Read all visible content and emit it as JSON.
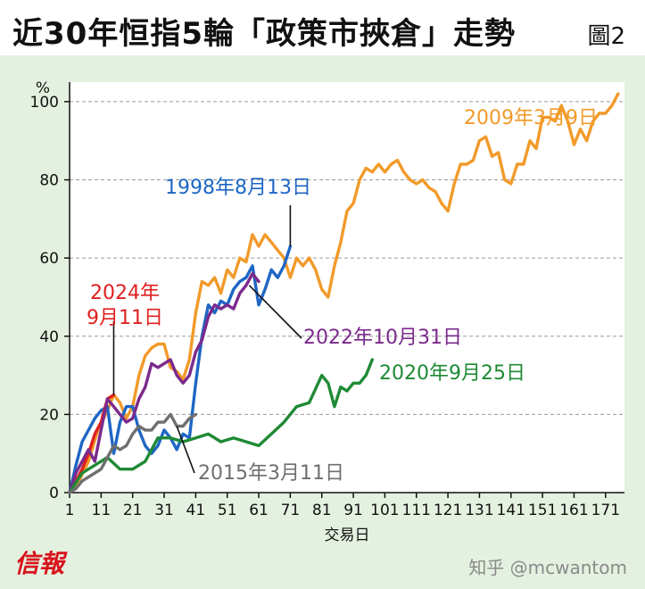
{
  "header": {
    "title": "近30年恒指5輪「政策市挾倉」走勢",
    "figure_label": "圖2"
  },
  "footer": {
    "logo": "信報",
    "watermark": "知乎 @mcwantom"
  },
  "chart_data": {
    "type": "line",
    "title": "近30年恒指5輪「政策市挾倉」走勢",
    "xlabel": "交易日",
    "ylabel": "%",
    "xlim": [
      1,
      177
    ],
    "ylim": [
      0,
      105
    ],
    "xticks": [
      1,
      11,
      21,
      31,
      41,
      51,
      61,
      71,
      81,
      91,
      101,
      111,
      121,
      131,
      141,
      151,
      161,
      171
    ],
    "yticks": [
      0,
      20,
      40,
      60,
      80,
      100
    ],
    "grid": "horizontal dashed",
    "series": [
      {
        "name": "2009年3月9日",
        "color": "#f29a2a",
        "x": [
          1,
          4,
          7,
          10,
          13,
          15,
          17,
          19,
          21,
          23,
          25,
          27,
          29,
          31,
          33,
          35,
          37,
          39,
          41,
          43,
          45,
          47,
          49,
          51,
          53,
          55,
          57,
          59,
          61,
          63,
          65,
          67,
          69,
          71,
          73,
          75,
          77,
          79,
          81,
          83,
          85,
          87,
          89,
          91,
          93,
          95,
          97,
          99,
          101,
          103,
          105,
          107,
          109,
          111,
          113,
          115,
          117,
          119,
          121,
          123,
          125,
          127,
          129,
          131,
          133,
          135,
          137,
          139,
          141,
          143,
          145,
          147,
          149,
          151,
          153,
          155,
          157,
          159,
          161,
          163,
          165,
          167,
          169,
          171,
          173,
          175
        ],
        "y": [
          0,
          3,
          8,
          16,
          21,
          25,
          23,
          19,
          22,
          30,
          35,
          37,
          38,
          38,
          32,
          31,
          29,
          34,
          46,
          54,
          53,
          55,
          51,
          57,
          55,
          60,
          59,
          66,
          63,
          66,
          64,
          62,
          60,
          55,
          60,
          58,
          60,
          57,
          52,
          50,
          58,
          64,
          72,
          74,
          80,
          83,
          82,
          84,
          82,
          84,
          85,
          82,
          80,
          79,
          80,
          78,
          77,
          74,
          72,
          79,
          84,
          84,
          85,
          90,
          91,
          86,
          87,
          80,
          79,
          84,
          84,
          90,
          88,
          96,
          96,
          95,
          99,
          95,
          89,
          93,
          90,
          95,
          97,
          97,
          99,
          102
        ]
      },
      {
        "name": "1998年8月13日",
        "color": "#1e66c4",
        "x": [
          1,
          3,
          5,
          7,
          9,
          11,
          13,
          15,
          17,
          19,
          21,
          23,
          25,
          27,
          29,
          31,
          33,
          35,
          37,
          39,
          41,
          43,
          45,
          47,
          49,
          51,
          53,
          55,
          57,
          59,
          61,
          63,
          65,
          67,
          69,
          71
        ],
        "y": [
          0,
          7,
          13,
          16,
          19,
          21,
          22,
          10,
          18,
          22,
          22,
          16,
          12,
          10,
          12,
          16,
          14,
          11,
          15,
          14,
          28,
          40,
          48,
          46,
          49,
          48,
          52,
          54,
          55,
          58,
          48,
          52,
          57,
          55,
          58,
          63
        ]
      },
      {
        "name": "2024年9月11日",
        "color": "#e02020",
        "x": [
          1,
          3,
          5,
          7,
          9,
          11,
          13,
          15
        ],
        "y": [
          0,
          3,
          6,
          10,
          15,
          18,
          24,
          25
        ]
      },
      {
        "name": "2022年10月31日",
        "color": "#7b2a8c",
        "x": [
          1,
          3,
          5,
          7,
          9,
          11,
          13,
          15,
          17,
          19,
          21,
          23,
          25,
          27,
          29,
          31,
          33,
          35,
          37,
          39,
          41,
          43,
          45,
          47,
          49,
          51,
          53,
          55,
          57,
          59,
          61
        ],
        "y": [
          0,
          5,
          8,
          11,
          8,
          16,
          24,
          22,
          20,
          18,
          19,
          24,
          27,
          33,
          32,
          33,
          34,
          30,
          28,
          30,
          36,
          39,
          45,
          48,
          47,
          48,
          47,
          51,
          53,
          56,
          54
        ]
      },
      {
        "name": "2020年9月25日",
        "color": "#1f8a35",
        "x": [
          1,
          5,
          9,
          13,
          17,
          21,
          25,
          29,
          33,
          37,
          41,
          45,
          49,
          53,
          57,
          61,
          65,
          69,
          73,
          77,
          81,
          83,
          85,
          87,
          89,
          91,
          93,
          95,
          97
        ],
        "y": [
          0,
          5,
          7,
          9,
          6,
          6,
          8,
          14,
          14,
          13,
          14,
          15,
          13,
          14,
          13,
          12,
          15,
          18,
          22,
          23,
          30,
          28,
          22,
          27,
          26,
          28,
          28,
          30,
          34
        ]
      },
      {
        "name": "2015年3月11日",
        "color": "#6f6f6f",
        "x": [
          1,
          3,
          5,
          7,
          9,
          11,
          13,
          15,
          17,
          19,
          21,
          23,
          25,
          27,
          29,
          31,
          33,
          35,
          37,
          39,
          41
        ],
        "y": [
          0,
          1,
          3,
          4,
          5,
          6,
          9,
          12,
          11,
          12,
          15,
          17,
          16,
          16,
          18,
          18,
          20,
          17,
          17,
          19,
          20
        ]
      }
    ],
    "annotations": [
      {
        "text": "2009年3月9日",
        "series": "2009年3月9日"
      },
      {
        "text": "1998年8月13日",
        "series": "1998年8月13日"
      },
      {
        "text": "2024年\n9月11日",
        "series": "2024年9月11日"
      },
      {
        "text": "2022年10月31日",
        "series": "2022年10月31日"
      },
      {
        "text": "2020年9月25日",
        "series": "2020年9月25日"
      },
      {
        "text": "2015年3月11日",
        "series": "2015年3月11日"
      }
    ]
  }
}
